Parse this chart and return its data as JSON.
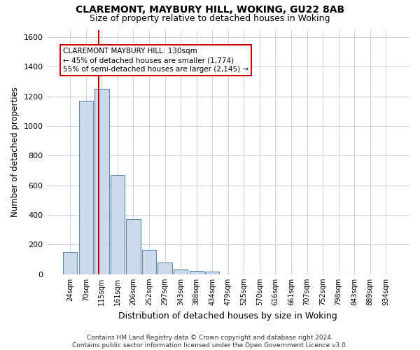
{
  "title": "CLAREMONT, MAYBURY HILL, WOKING, GU22 8AB",
  "subtitle": "Size of property relative to detached houses in Woking",
  "xlabel": "Distribution of detached houses by size in Woking",
  "ylabel": "Number of detached properties",
  "footer_line1": "Contains HM Land Registry data © Crown copyright and database right 2024.",
  "footer_line2": "Contains public sector information licensed under the Open Government Licence v3.0.",
  "bar_color": "#ccdaeb",
  "bar_edge_color": "#5a8ab0",
  "grid_color": "#c8d0dc",
  "annotation_box_color": "#cc0000",
  "vline_color": "#cc0000",
  "categories": [
    "24sqm",
    "70sqm",
    "115sqm",
    "161sqm",
    "206sqm",
    "252sqm",
    "297sqm",
    "343sqm",
    "388sqm",
    "434sqm",
    "479sqm",
    "525sqm",
    "570sqm",
    "616sqm",
    "661sqm",
    "707sqm",
    "752sqm",
    "798sqm",
    "843sqm",
    "889sqm",
    "934sqm"
  ],
  "values": [
    150,
    1170,
    1250,
    670,
    370,
    165,
    80,
    32,
    22,
    20,
    0,
    0,
    0,
    0,
    0,
    0,
    0,
    0,
    0,
    0,
    0
  ],
  "ylim": [
    0,
    1650
  ],
  "yticks": [
    0,
    200,
    400,
    600,
    800,
    1000,
    1200,
    1400,
    1600
  ],
  "vline_x": 1.82,
  "annotation_text": "CLAREMONT MAYBURY HILL: 130sqm\n← 45% of detached houses are smaller (1,774)\n55% of semi-detached houses are larger (2,145) →",
  "property_size_sqm": 130
}
